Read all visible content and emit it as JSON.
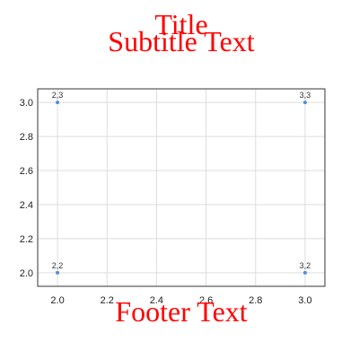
{
  "colors": {
    "title": "#ff0000",
    "point": "#4a90d9",
    "grid": "#dddddd",
    "frame": "#333333",
    "background": "#ffffff"
  },
  "chart_data": {
    "type": "scatter",
    "title": "Title",
    "subtitle": "Subtitle Text",
    "footer": "Footer Text",
    "xlabel": "",
    "ylabel": "",
    "xlim": [
      1.92,
      3.08
    ],
    "ylim": [
      1.92,
      3.08
    ],
    "xticks": [
      "2.0",
      "2.2",
      "2.4",
      "2.6",
      "2.8",
      "3.0"
    ],
    "yticks": [
      "2.0",
      "2.2",
      "2.4",
      "2.6",
      "2.8",
      "3.0"
    ],
    "grid": true,
    "legend": "none",
    "points": [
      {
        "x": 2,
        "y": 3,
        "label": "2,3"
      },
      {
        "x": 3,
        "y": 3,
        "label": "3,3"
      },
      {
        "x": 2,
        "y": 2,
        "label": "2,2"
      },
      {
        "x": 3,
        "y": 2,
        "label": "3,2"
      }
    ]
  }
}
